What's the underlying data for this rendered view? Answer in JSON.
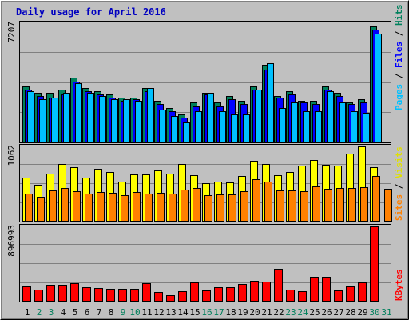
{
  "chart_data": [
    {
      "type": "bar",
      "title": "Daily usage for April 2016",
      "categories": [
        "1",
        "2",
        "3",
        "4",
        "5",
        "6",
        "7",
        "8",
        "9",
        "10",
        "11",
        "12",
        "13",
        "14",
        "15",
        "16",
        "17",
        "18",
        "19",
        "20",
        "21",
        "22",
        "23",
        "24",
        "25",
        "26",
        "27",
        "28",
        "29",
        "30",
        "31"
      ],
      "weekend_days": [
        "2",
        "3",
        "9",
        "10",
        "16",
        "17",
        "23",
        "24",
        "30",
        "31"
      ],
      "ymax_label": "7207",
      "ylim": [
        0,
        7207
      ],
      "side_label": [
        "Pages",
        "Files",
        "Hits"
      ],
      "series": [
        {
          "name": "Hits",
          "color": "#00805c",
          "values": [
            3400,
            3000,
            3000,
            3200,
            3900,
            3300,
            3100,
            2900,
            2700,
            2700,
            3300,
            2500,
            2100,
            1700,
            2400,
            3000,
            2400,
            2800,
            2500,
            3400,
            4700,
            2800,
            3100,
            2500,
            2500,
            3400,
            3000,
            2400,
            2600,
            7000,
            0
          ]
        },
        {
          "name": "Files",
          "color": "#0000ff",
          "values": [
            3200,
            2800,
            2700,
            2900,
            3700,
            3100,
            2900,
            2700,
            2500,
            2600,
            3100,
            2300,
            1900,
            1500,
            2200,
            2900,
            2200,
            2600,
            2300,
            3200,
            4400,
            2700,
            2900,
            2400,
            2300,
            3200,
            2800,
            2300,
            2400,
            6800,
            0
          ]
        },
        {
          "name": "Pages",
          "color": "#00c0ff",
          "values": [
            3100,
            2600,
            2700,
            3000,
            3600,
            3000,
            2800,
            2600,
            2600,
            2500,
            3300,
            2000,
            1600,
            1200,
            1900,
            3000,
            1900,
            1700,
            1700,
            3200,
            4800,
            2100,
            2400,
            1900,
            1900,
            3100,
            2400,
            1900,
            1800,
            6600,
            0
          ]
        }
      ]
    },
    {
      "type": "bar",
      "categories": [
        "1",
        "2",
        "3",
        "4",
        "5",
        "6",
        "7",
        "8",
        "9",
        "10",
        "11",
        "12",
        "13",
        "14",
        "15",
        "16",
        "17",
        "18",
        "19",
        "20",
        "21",
        "22",
        "23",
        "24",
        "25",
        "26",
        "27",
        "28",
        "29",
        "30",
        "31"
      ],
      "ymax_label": "1062",
      "ylim": [
        0,
        1062
      ],
      "side_label": [
        "Sites",
        "Visits"
      ],
      "series": [
        {
          "name": "Visits",
          "color": "#ffff00",
          "values": [
            620,
            520,
            680,
            810,
            770,
            620,
            750,
            700,
            560,
            670,
            670,
            720,
            680,
            810,
            660,
            540,
            570,
            550,
            640,
            860,
            810,
            650,
            700,
            790,
            870,
            800,
            790,
            960,
            1060,
            770,
            0
          ]
        },
        {
          "name": "Sites",
          "color": "#ff8000",
          "values": [
            390,
            350,
            440,
            470,
            430,
            400,
            420,
            410,
            370,
            420,
            390,
            410,
            390,
            450,
            470,
            370,
            380,
            380,
            430,
            600,
            570,
            440,
            440,
            430,
            500,
            460,
            470,
            470,
            490,
            640,
            460
          ]
        }
      ]
    },
    {
      "type": "bar",
      "categories": [
        "1",
        "2",
        "3",
        "4",
        "5",
        "6",
        "7",
        "8",
        "9",
        "10",
        "11",
        "12",
        "13",
        "14",
        "15",
        "16",
        "17",
        "18",
        "19",
        "20",
        "21",
        "22",
        "23",
        "24",
        "25",
        "26",
        "27",
        "28",
        "29",
        "30",
        "31"
      ],
      "ymax_label": "896993",
      "ylim": [
        0,
        896993
      ],
      "side_label": [
        "KBytes"
      ],
      "series": [
        {
          "name": "KBytes",
          "color": "#ff0000",
          "values": [
            180000,
            140000,
            200000,
            200000,
            220000,
            170000,
            160000,
            150000,
            150000,
            150000,
            220000,
            110000,
            80000,
            120000,
            230000,
            130000,
            170000,
            170000,
            210000,
            250000,
            240000,
            390000,
            140000,
            120000,
            300000,
            300000,
            130000,
            180000,
            230000,
            900000,
            0
          ]
        }
      ]
    }
  ]
}
